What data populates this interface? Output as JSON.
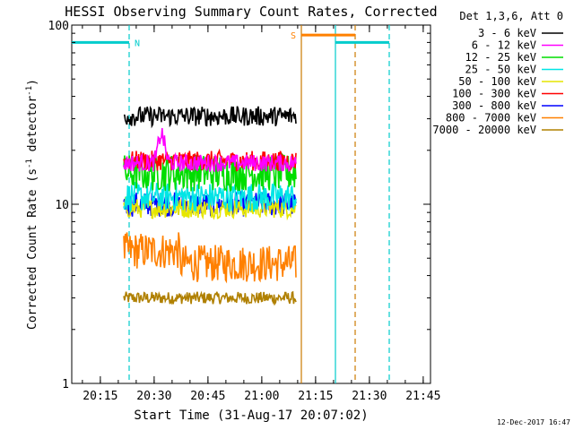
{
  "chart_data": {
    "type": "line",
    "title": "HESSI Observing Summary Count Rates, Corrected",
    "xlabel": "Start Time (31-Aug-17 20:07:02)",
    "ylabel_main": "Corrected Count Rate (s",
    "ylabel_sup1": "-1",
    "ylabel_mid": " detector",
    "ylabel_sup2": "-1",
    "ylabel_end": ")",
    "y_scale": "log",
    "ylim": [
      1,
      100
    ],
    "y_ticks": [
      {
        "value": 1,
        "label": "1"
      },
      {
        "value": 10,
        "label": "10"
      },
      {
        "value": 100,
        "label": "100"
      }
    ],
    "x_range_minutes": [
      0,
      100
    ],
    "x_ticks": [
      {
        "minute": 7.97,
        "label": "20:15"
      },
      {
        "minute": 22.97,
        "label": "20:30"
      },
      {
        "minute": 37.97,
        "label": "20:45"
      },
      {
        "minute": 52.97,
        "label": "21:00"
      },
      {
        "minute": 67.97,
        "label": "21:15"
      },
      {
        "minute": 82.97,
        "label": "21:30"
      },
      {
        "minute": 97.97,
        "label": "21:45"
      }
    ],
    "data_window_minutes": [
      14.5,
      62.5
    ],
    "legend_title": "Det 1,3,6, Att 0",
    "legend_position": "top-right",
    "series": [
      {
        "name": "3 - 6 keV",
        "color": "#000000",
        "level": 31,
        "noise": 0.08
      },
      {
        "name": "6 - 12 keV",
        "color": "#ff00ff",
        "level": 17,
        "noise": 0.07
      },
      {
        "name": "12 - 25 keV",
        "color": "#00dd00",
        "level": 15,
        "noise": 0.15
      },
      {
        "name": "25 - 50 keV",
        "color": "#00e5e5",
        "level": 11,
        "noise": 0.12
      },
      {
        "name": "50 - 100 keV",
        "color": "#e6e600",
        "level": 9.5,
        "noise": 0.08
      },
      {
        "name": "100 - 300 keV",
        "color": "#ff0000",
        "level": 17.5,
        "noise": 0.08
      },
      {
        "name": "300 - 800 keV",
        "color": "#0000ff",
        "level": 10,
        "noise": 0.1
      },
      {
        "name": "800 - 7000 keV",
        "color": "#ff8000",
        "level": 5.5,
        "noise": 0.15
      },
      {
        "name": "7000 - 20000 keV",
        "color": "#b08000",
        "level": 3,
        "noise": 0.05
      }
    ],
    "flags": [
      {
        "label": "N",
        "color": "#00cccc",
        "start_min": 0,
        "end_min": 16,
        "level": 80
      },
      {
        "label": "S",
        "color": "#ff8000",
        "start_min": 64,
        "end_min": 79,
        "level": 88
      },
      {
        "label": "",
        "color": "#00cccc",
        "start_min": 73.5,
        "end_min": 88.5,
        "level": 80
      }
    ],
    "vlines": [
      {
        "minute": 16,
        "color": "#00cccc",
        "style": "dashed"
      },
      {
        "minute": 64,
        "color": "#cc7a00",
        "style": "solid"
      },
      {
        "minute": 73.5,
        "color": "#00cccc",
        "style": "solid"
      },
      {
        "minute": 79,
        "color": "#cc7a00",
        "style": "dashed"
      },
      {
        "minute": 88.5,
        "color": "#00cccc",
        "style": "dashed"
      }
    ],
    "footer_date": "12-Dec-2017 16:47",
    "grid": false
  }
}
